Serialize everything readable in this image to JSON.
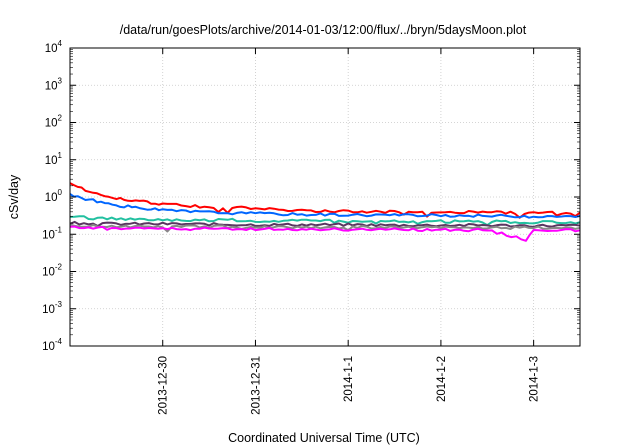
{
  "chart_data": {
    "type": "line",
    "title": "/data/run/goesPlots/archive/2014-01-03/12:00/flux/../bryn/5daysMoon.plot",
    "xlabel": "Coordinated Universal Time (UTC)",
    "ylabel": "cSv/day",
    "y_scale": "log",
    "ylim": [
      0.0001,
      10000
    ],
    "xlim": [
      "2013-12-29 00:00",
      "2014-01-03 12:00"
    ],
    "grid": true,
    "legend": "none",
    "y_ticks": [
      {
        "base": "10",
        "exp": "4",
        "value": 10000
      },
      {
        "base": "10",
        "exp": "3",
        "value": 1000
      },
      {
        "base": "10",
        "exp": "2",
        "value": 100
      },
      {
        "base": "10",
        "exp": "1",
        "value": 10
      },
      {
        "base": "10",
        "exp": "0",
        "value": 1
      },
      {
        "base": "10",
        "exp": "-1",
        "value": 0.1
      },
      {
        "base": "10",
        "exp": "-2",
        "value": 0.01
      },
      {
        "base": "10",
        "exp": "-3",
        "value": 0.001
      },
      {
        "base": "10",
        "exp": "-4",
        "value": 0.0001
      }
    ],
    "x_ticks": [
      {
        "label": "2013-12-30",
        "value": "2013-12-30 00:00"
      },
      {
        "label": "2013-12-31",
        "value": "2013-12-31 00:00"
      },
      {
        "label": "2014-1-1",
        "value": "2014-01-01 00:00"
      },
      {
        "label": "2014-1-2",
        "value": "2014-01-02 00:00"
      },
      {
        "label": "2014-1-3",
        "value": "2014-01-03 00:00"
      }
    ],
    "series": [
      {
        "color": "#ff0000",
        "x": [
          "2013-12-29 00:00",
          "2013-12-29 03:00",
          "2013-12-29 06:00",
          "2013-12-29 09:00",
          "2013-12-29 12:00",
          "2013-12-29 15:00",
          "2013-12-29 18:00",
          "2013-12-29 21:00",
          "2013-12-30 00:00",
          "2013-12-30 06:00",
          "2013-12-30 12:00",
          "2013-12-30 18:00",
          "2013-12-31 00:00",
          "2013-12-31 06:00",
          "2013-12-31 12:00",
          "2013-12-31 18:00",
          "2014-01-01 00:00",
          "2014-01-01 06:00",
          "2014-01-01 12:00",
          "2014-01-01 18:00",
          "2014-01-02 00:00",
          "2014-01-02 06:00",
          "2014-01-02 12:00",
          "2014-01-02 18:00",
          "2014-01-03 00:00",
          "2014-01-03 06:00",
          "2014-01-03 12:00"
        ],
        "y": [
          2.3,
          1.7,
          1.35,
          1.1,
          0.95,
          0.85,
          0.77,
          0.7,
          0.64,
          0.58,
          0.55,
          0.52,
          0.5,
          0.46,
          0.44,
          0.42,
          0.41,
          0.4,
          0.4,
          0.39,
          0.39,
          0.39,
          0.39,
          0.38,
          0.37,
          0.38,
          0.38
        ]
      },
      {
        "color": "#0066ff",
        "x": [
          "2013-12-29 00:00",
          "2013-12-29 03:00",
          "2013-12-29 06:00",
          "2013-12-29 09:00",
          "2013-12-29 12:00",
          "2013-12-29 15:00",
          "2013-12-29 18:00",
          "2013-12-29 21:00",
          "2013-12-30 00:00",
          "2013-12-30 06:00",
          "2013-12-30 12:00",
          "2013-12-30 18:00",
          "2013-12-31 00:00",
          "2013-12-31 06:00",
          "2013-12-31 12:00",
          "2013-12-31 18:00",
          "2014-01-01 00:00",
          "2014-01-01 06:00",
          "2014-01-01 12:00",
          "2014-01-01 18:00",
          "2014-01-02 00:00",
          "2014-01-02 06:00",
          "2014-01-02 12:00",
          "2014-01-02 18:00",
          "2014-01-03 00:00",
          "2014-01-03 06:00",
          "2014-01-03 12:00"
        ],
        "y": [
          1.2,
          0.95,
          0.8,
          0.68,
          0.6,
          0.55,
          0.5,
          0.47,
          0.44,
          0.41,
          0.39,
          0.37,
          0.36,
          0.35,
          0.34,
          0.34,
          0.33,
          0.33,
          0.33,
          0.32,
          0.32,
          0.32,
          0.31,
          0.31,
          0.3,
          0.31,
          0.31
        ]
      },
      {
        "color": "#22c0a0",
        "x": [
          "2013-12-29 00:00",
          "2013-12-29 06:00",
          "2013-12-29 12:00",
          "2013-12-29 18:00",
          "2013-12-30 00:00",
          "2013-12-30 06:00",
          "2013-12-30 12:00",
          "2013-12-30 18:00",
          "2013-12-31 00:00",
          "2013-12-31 06:00",
          "2013-12-31 12:00",
          "2013-12-31 18:00",
          "2014-01-01 00:00",
          "2014-01-01 06:00",
          "2014-01-01 12:00",
          "2014-01-01 18:00",
          "2014-01-02 00:00",
          "2014-01-02 06:00",
          "2014-01-02 12:00",
          "2014-01-02 18:00",
          "2014-01-03 00:00",
          "2014-01-03 06:00",
          "2014-01-03 12:00"
        ],
        "y": [
          0.3,
          0.27,
          0.26,
          0.25,
          0.25,
          0.24,
          0.24,
          0.24,
          0.23,
          0.23,
          0.23,
          0.23,
          0.22,
          0.22,
          0.22,
          0.22,
          0.22,
          0.22,
          0.22,
          0.21,
          0.21,
          0.21,
          0.21
        ]
      },
      {
        "color": "#5a3560",
        "x": [
          "2013-12-29 00:00",
          "2013-12-29 12:00",
          "2013-12-30 00:00",
          "2013-12-30 12:00",
          "2013-12-31 00:00",
          "2013-12-31 12:00",
          "2014-01-01 00:00",
          "2014-01-01 12:00",
          "2014-01-02 00:00",
          "2014-01-02 12:00",
          "2014-01-03 00:00",
          "2014-01-03 12:00"
        ],
        "y": [
          0.2,
          0.19,
          0.19,
          0.185,
          0.18,
          0.18,
          0.18,
          0.175,
          0.175,
          0.175,
          0.17,
          0.17
        ]
      },
      {
        "color": "#888888",
        "x": [
          "2013-12-29 00:00",
          "2013-12-29 12:00",
          "2013-12-30 00:00",
          "2013-12-30 12:00",
          "2013-12-31 00:00",
          "2013-12-31 12:00",
          "2014-01-01 00:00",
          "2014-01-01 12:00",
          "2014-01-02 00:00",
          "2014-01-02 12:00",
          "2014-01-03 00:00",
          "2014-01-03 12:00"
        ],
        "y": [
          0.17,
          0.165,
          0.16,
          0.16,
          0.158,
          0.155,
          0.155,
          0.152,
          0.15,
          0.15,
          0.148,
          0.148
        ]
      },
      {
        "color": "#ff00ff",
        "x": [
          "2013-12-29 00:00",
          "2013-12-29 12:00",
          "2013-12-30 00:00",
          "2013-12-30 12:00",
          "2013-12-31 00:00",
          "2013-12-31 12:00",
          "2014-01-01 00:00",
          "2014-01-01 12:00",
          "2014-01-02 00:00",
          "2014-01-02 12:00",
          "2014-01-02 22:00",
          "2014-01-03 00:00",
          "2014-01-03 12:00"
        ],
        "y": [
          0.15,
          0.145,
          0.14,
          0.14,
          0.138,
          0.136,
          0.135,
          0.133,
          0.132,
          0.13,
          0.07,
          0.13,
          0.128
        ]
      }
    ]
  }
}
